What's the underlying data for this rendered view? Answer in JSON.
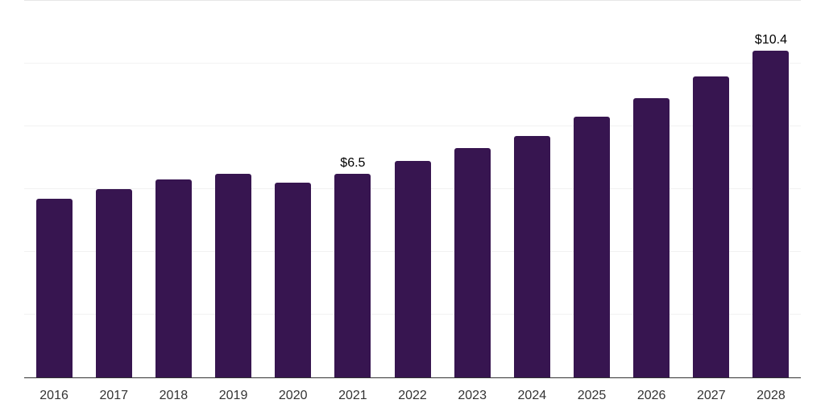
{
  "chart_data": {
    "type": "bar",
    "title": "",
    "xlabel": "",
    "ylabel": "",
    "categories": [
      "2016",
      "2017",
      "2018",
      "2019",
      "2020",
      "2021",
      "2022",
      "2023",
      "2024",
      "2025",
      "2026",
      "2027",
      "2028"
    ],
    "values": [
      5.7,
      6.0,
      6.3,
      6.5,
      6.2,
      6.5,
      6.9,
      7.3,
      7.7,
      8.3,
      8.9,
      9.6,
      10.4
    ],
    "data_labels": {
      "2021": "$6.5",
      "2028": "$10.4"
    },
    "ylim": [
      0,
      12
    ],
    "gridline_values": [
      2,
      4,
      6,
      8,
      10,
      12
    ],
    "grid": "horizontal",
    "y_tick_labels": "none",
    "legend": "none",
    "colors": {
      "bar": "#371550",
      "gridline": "#f2f2f2",
      "gridline_top": "#e7e7e7",
      "axis_line": "#333333",
      "x_label": "#333333",
      "data_label": "#000000"
    }
  }
}
